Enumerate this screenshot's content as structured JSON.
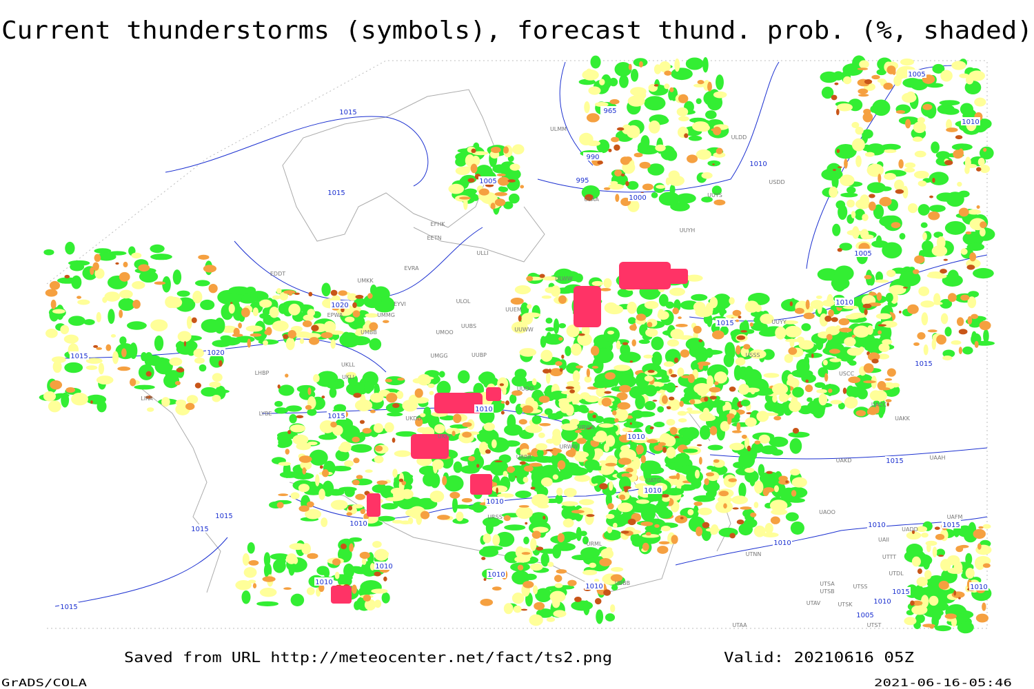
{
  "header": {
    "title": "Current thunderstorms (symbols), forecast thund. prob. (%, shaded)"
  },
  "footer": {
    "source": "Saved from URL http://meteocenter.net/fact/ts2.png",
    "valid": "Valid: 20210616 05Z",
    "software": "GrADS/COLA",
    "timestamp": "2021-06-16-05:46"
  },
  "isobar_labels": [
    "1015",
    "1015",
    "1005",
    "965",
    "990",
    "995",
    "1000",
    "1010",
    "1005",
    "1010",
    "1005",
    "1010",
    "1015",
    "1020",
    "1020",
    "1015",
    "1015",
    "1015",
    "1010",
    "1010",
    "1015",
    "1010",
    "1010",
    "1010",
    "1015",
    "1015",
    "1010",
    "1015",
    "1010",
    "1010",
    "1010",
    "1010",
    "1010",
    "1015",
    "1010",
    "1015",
    "1005",
    "1010"
  ],
  "stations": [
    "ULMM",
    "ULDD",
    "USDD",
    "UUYS",
    "UUYH",
    "ULAA",
    "EFHK",
    "EETN",
    "ULLI",
    "EVRA",
    "ULOL",
    "UMKK",
    "EDDT",
    "EYVI",
    "EPWA",
    "UMMG",
    "UMBB",
    "UMOO",
    "ULWW",
    "UUEM",
    "UUBS",
    "UUWW",
    "UMGG",
    "UUBP",
    "UKLL",
    "UKLI",
    "LHBP",
    "UUOO",
    "LIRA",
    "LYBE",
    "UKDD",
    "URWA",
    "URWW",
    "UKFF",
    "URRR",
    "UATG",
    "UUYY",
    "USSS",
    "USCC",
    "UAKK",
    "UACC",
    "UAKD",
    "UAAH",
    "UAII",
    "UTTT",
    "UTDL",
    "UTSS",
    "UTSA",
    "UTSB",
    "UTAV",
    "UTSK",
    "UTST",
    "UTAA",
    "UTNN",
    "UAOO",
    "UADD",
    "UAFM",
    "UBBB",
    "URML",
    "URSS"
  ]
}
